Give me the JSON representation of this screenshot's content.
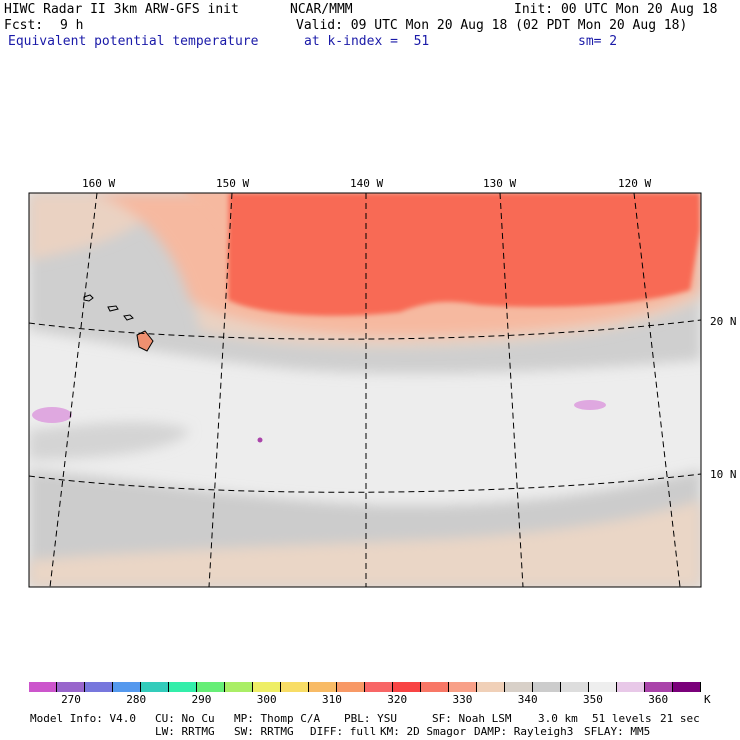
{
  "header": {
    "title": "HIWC Radar II 3km ARW-GFS init",
    "center": "NCAR/MMM",
    "init": "Init: 00 UTC Mon 20 Aug 18",
    "fcst_label": "Fcst:",
    "fcst_value": "9 h",
    "valid": "Valid: 09 UTC Mon 20 Aug 18 (02 PDT Mon 20 Aug 18)",
    "field": "Equivalent potential temperature",
    "level": "at k-index =  51",
    "smoothing": "sm= 2"
  },
  "map": {
    "lon_labels": [
      "160 W",
      "150 W",
      "140 W",
      "130 W",
      "120 W"
    ],
    "lat_labels": [
      "20 N",
      "10 N"
    ]
  },
  "colorbar": {
    "colors": [
      "#cc55cc",
      "#9966cc",
      "#7777dd",
      "#5599ee",
      "#33ccbb",
      "#33eeaa",
      "#66ee77",
      "#aaee66",
      "#eeee66",
      "#f8dd66",
      "#f8bb66",
      "#f89966",
      "#f86666",
      "#f84444",
      "#f87766",
      "#f8a088",
      "#f0d0b8",
      "#d8d0c8",
      "#cccccc",
      "#dddddd",
      "#eeeeee",
      "#e8c8e8",
      "#aa44aa",
      "#7a007a"
    ],
    "labels": [
      "270",
      "280",
      "290",
      "300",
      "310",
      "320",
      "330",
      "340",
      "350",
      "360"
    ],
    "unit": "K"
  },
  "footer": {
    "line1": [
      "Model Info: V4.0",
      "CU: No Cu",
      "MP: Thomp C/A",
      "PBL: YSU",
      "SF: Noah LSM",
      "3.0 km",
      "51 levels",
      "21 sec"
    ],
    "line2": [
      "LW: RRTMG",
      "SW: RRTMG",
      "DIFF: full",
      "KM: 2D Smagor",
      "DAMP: Rayleigh3",
      "SFLAY: MM5"
    ]
  }
}
